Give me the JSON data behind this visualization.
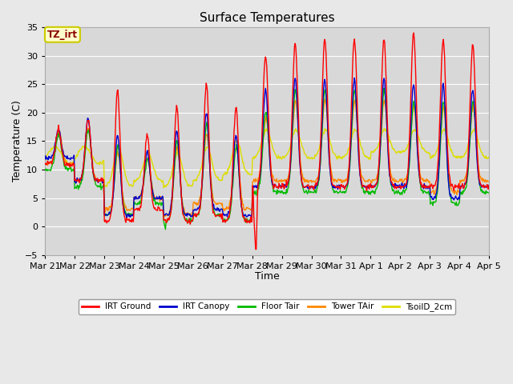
{
  "title": "Surface Temperatures",
  "xlabel": "Time",
  "ylabel": "Temperature (C)",
  "ylim": [
    -5,
    35
  ],
  "figsize": [
    6.4,
    4.8
  ],
  "dpi": 100,
  "background_color": "#e8e8e8",
  "plot_bg_color": "#d8d8d8",
  "annotation_text": "TZ_irt",
  "annotation_color": "#8b0000",
  "annotation_bg": "#ffffcc",
  "annotation_border": "#cccc00",
  "series": {
    "IRT Ground": {
      "color": "#ff0000",
      "lw": 1.0
    },
    "IRT Canopy": {
      "color": "#0000cc",
      "lw": 1.0
    },
    "Floor Tair": {
      "color": "#00bb00",
      "lw": 1.0
    },
    "Tower TAir": {
      "color": "#ff8800",
      "lw": 1.0
    },
    "TsoilD_2cm": {
      "color": "#dddd00",
      "lw": 1.0
    }
  },
  "x_tick_labels": [
    "Mar 21",
    "Mar 22",
    "Mar 23",
    "Mar 24",
    "Mar 25",
    "Mar 26",
    "Mar 27",
    "Mar 28",
    "Mar 29",
    "Mar 30",
    "Mar 31",
    "Apr 1",
    "Apr 2",
    "Apr 3",
    "Apr 4",
    "Apr 5"
  ],
  "yticks": [
    -5,
    0,
    5,
    10,
    15,
    20,
    25,
    30,
    35
  ],
  "grid_color": "#ffffff",
  "grid_lw": 0.8
}
